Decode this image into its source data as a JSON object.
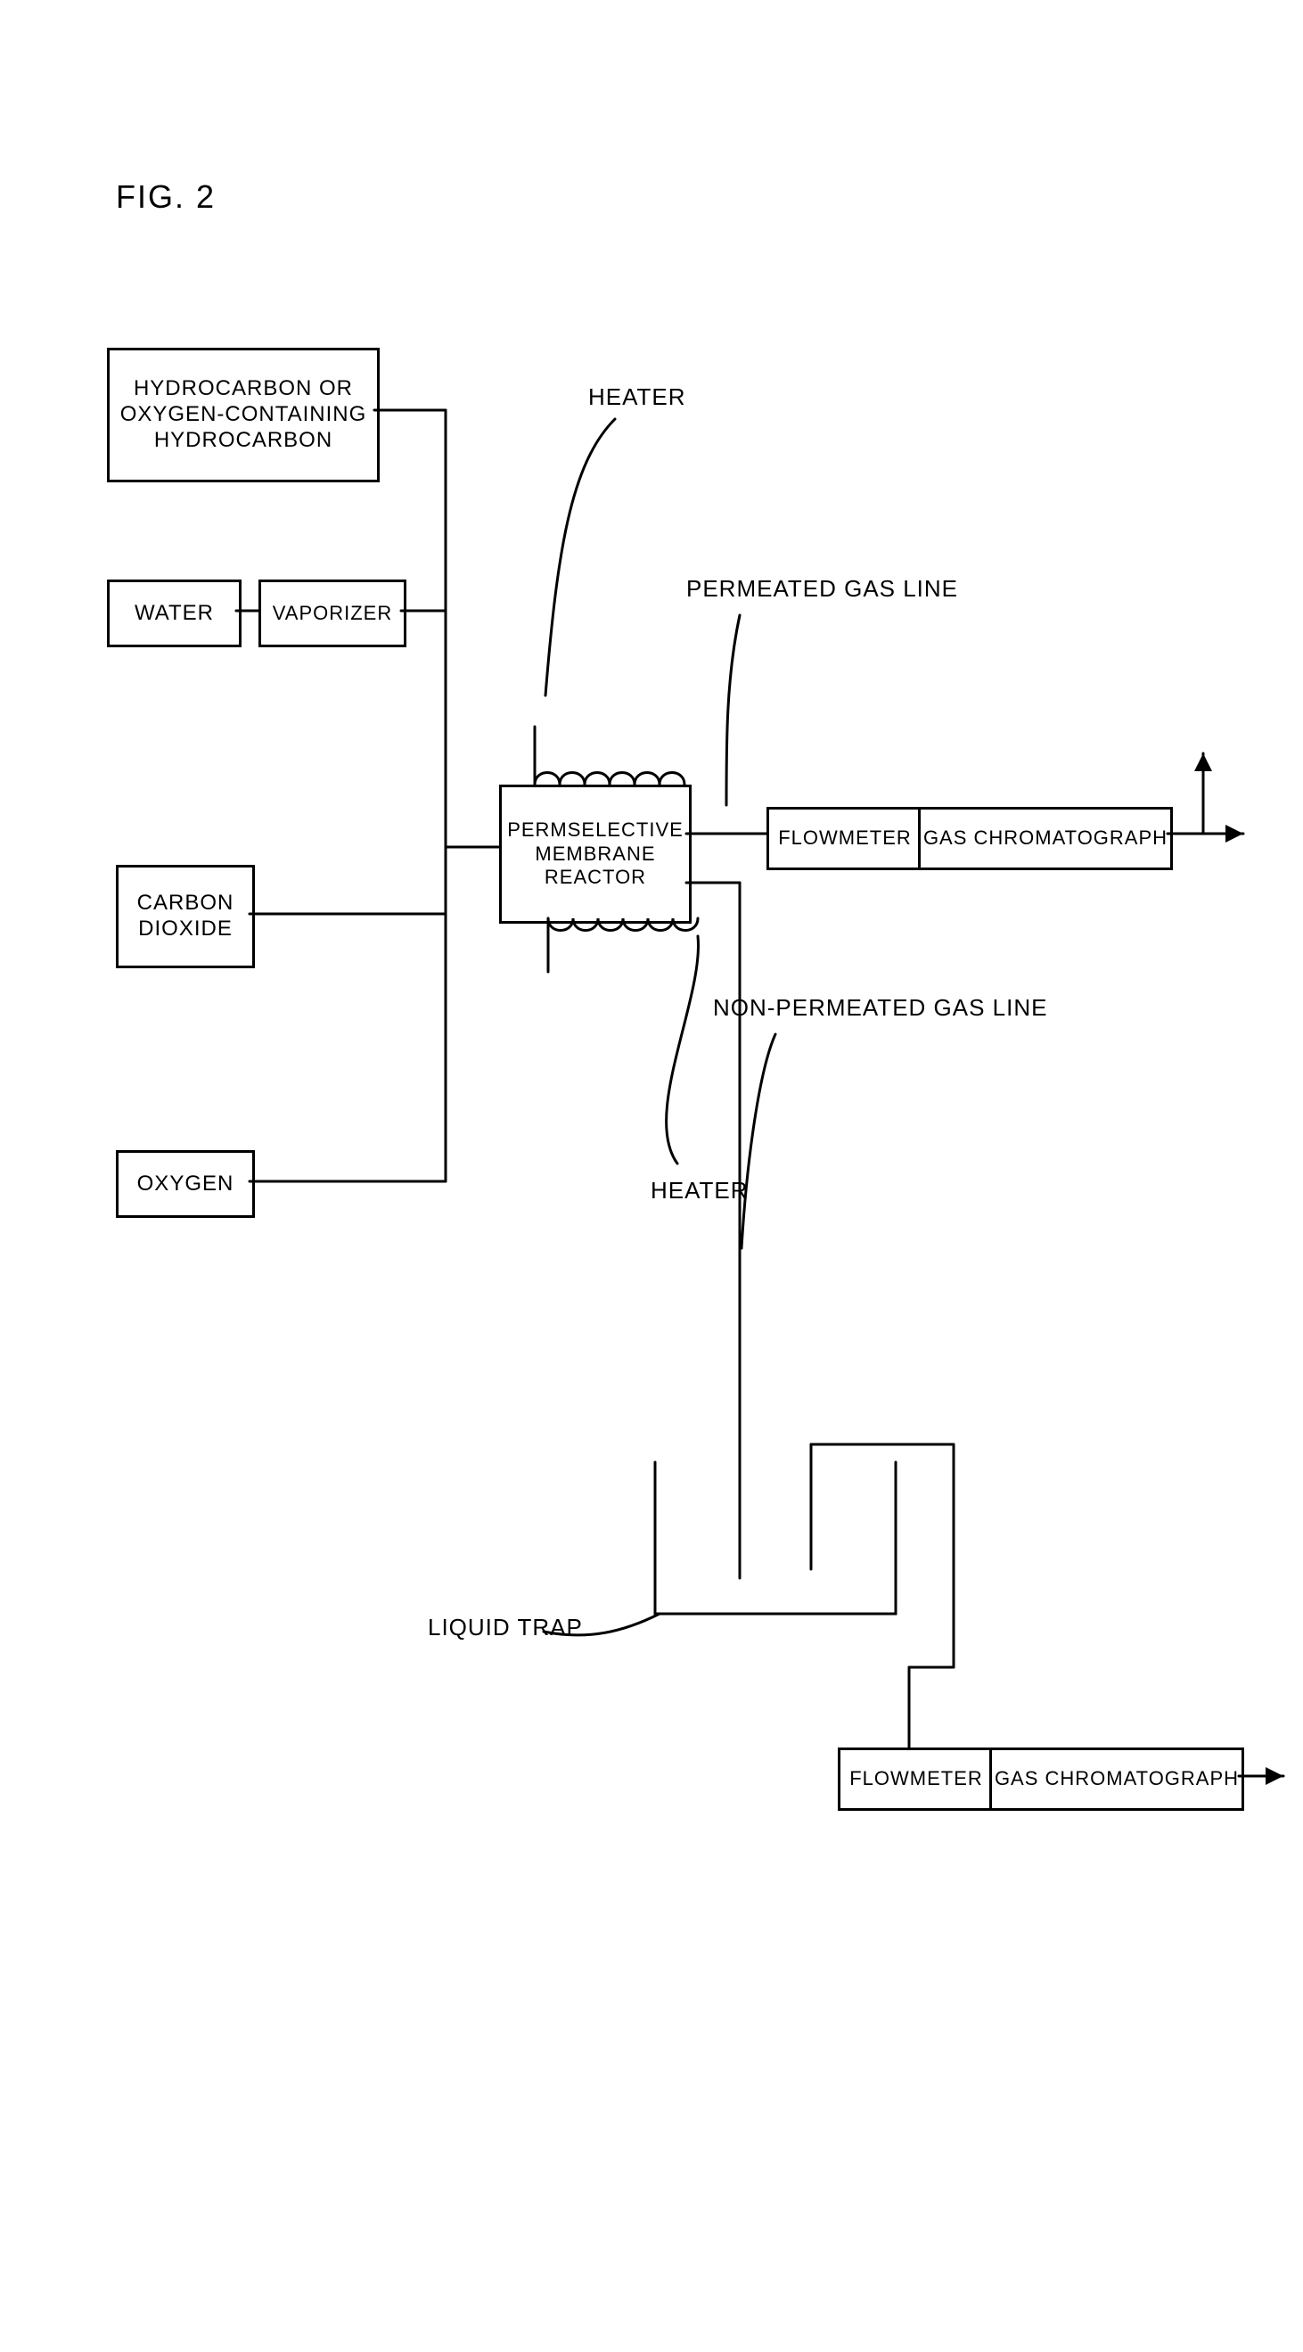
{
  "figureTitle": "FIG. 2",
  "boxes": {
    "hydrocarbon": "HYDROCARBON OR\nOXYGEN-CONTAINING\nHYDROCARBON",
    "water": "WATER",
    "vaporizer": "VAPORIZER",
    "carbonDioxide": "CARBON\nDIOXIDE",
    "oxygen": "OXYGEN",
    "reactor": "PERMSELECTIVE\nMEMBRANE\nREACTOR",
    "flowmeter1": "FLOWMETER",
    "gasChrom1": "GAS CHROMATOGRAPH",
    "flowmeter2": "FLOWMETER",
    "gasChrom2": "GAS CHROMATOGRAPH"
  },
  "labels": {
    "heater1": "HEATER",
    "heater2": "HEATER",
    "permeated": "PERMEATED GAS LINE",
    "nonPermeated": "NON-PERMEATED GAS LINE",
    "liquidTrap": "LIQUID TRAP"
  },
  "style": {
    "background": "#ffffff",
    "stroke": "#000000",
    "strokeWidth": 3,
    "fontSize": 24,
    "titleFontSize": 36
  }
}
